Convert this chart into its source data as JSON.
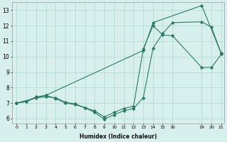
{
  "xlabel": "Humidex (Indice chaleur)",
  "xlim": [
    -0.5,
    21.3
  ],
  "ylim": [
    5.7,
    13.5
  ],
  "xticks": [
    0,
    1,
    2,
    3,
    4,
    5,
    6,
    7,
    8,
    9,
    10,
    11,
    12,
    13,
    14,
    15,
    16,
    19,
    20,
    21
  ],
  "yticks": [
    6,
    7,
    8,
    9,
    10,
    11,
    12,
    13
  ],
  "line_color": "#2a7a68",
  "bg_color": "#d8f0ed",
  "grid_color": "#b2d8d2",
  "series1_x": [
    0,
    1,
    2,
    3,
    4,
    5,
    6,
    7,
    8,
    9,
    10,
    11,
    12,
    13,
    14,
    15,
    16,
    19,
    20,
    21
  ],
  "series1_y": [
    7.0,
    7.1,
    7.4,
    7.5,
    7.3,
    7.0,
    6.9,
    6.7,
    6.4,
    5.95,
    6.25,
    6.5,
    6.65,
    7.35,
    10.55,
    11.5,
    12.2,
    12.25,
    11.9,
    10.2
  ],
  "series2_x": [
    0,
    1,
    2,
    3,
    4,
    5,
    6,
    7,
    8,
    9,
    10,
    11,
    12,
    13,
    14,
    15,
    16,
    19,
    20,
    21
  ],
  "series2_y": [
    7.0,
    7.1,
    7.35,
    7.4,
    7.35,
    7.05,
    6.95,
    6.7,
    6.5,
    6.1,
    6.4,
    6.65,
    6.8,
    10.5,
    12.0,
    11.4,
    11.35,
    9.3,
    9.3,
    10.15
  ],
  "series3_x": [
    0,
    3,
    13,
    14,
    19,
    21
  ],
  "series3_y": [
    7.0,
    7.5,
    10.4,
    12.2,
    13.3,
    10.2
  ]
}
